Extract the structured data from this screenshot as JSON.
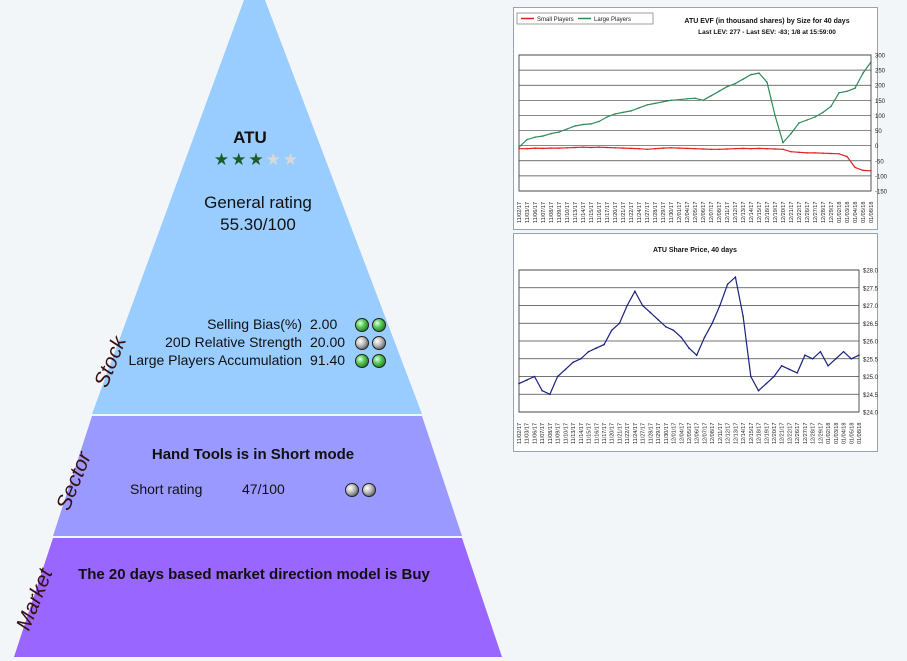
{
  "stock": {
    "ticker": "ATU",
    "stars_filled": 3,
    "stars_total": 5,
    "general_rating_label": "General rating",
    "general_rating_value": "55.30/100",
    "layer_label": "Stock",
    "metrics": [
      {
        "label": "Selling Bias(%)",
        "value": "2.00",
        "balls": [
          "green",
          "green"
        ]
      },
      {
        "label": "20D Relative Strength",
        "value": "20.00",
        "balls": [
          "gray",
          "gray"
        ]
      },
      {
        "label": "Large Players Accumulation",
        "value": "91.40",
        "balls": [
          "green",
          "green"
        ]
      }
    ]
  },
  "sector": {
    "layer_label": "Sector",
    "title": "Hand Tools is in Short mode",
    "short_rating_label": "Short rating",
    "short_rating_value": "47/100",
    "balls": [
      "gray",
      "gray"
    ]
  },
  "market": {
    "layer_label": "Market",
    "title": "The 20 days based market direction model is Buy"
  },
  "colors": {
    "stock_layer": "#99ccff",
    "sector_layer": "#9999ff",
    "market_layer": "#9966ff",
    "small_players": "#e02020",
    "large_players": "#2e8b57",
    "share_price": "#1a237e"
  },
  "chart_data": [
    {
      "type": "line",
      "title": "ATU EVF (in thousand shares) by Size for 40 days",
      "subtitle": "Last LEV: 277 - Last SEV: -83; 1/8 at 15:59:00",
      "legend": [
        "Small Players",
        "Large Players"
      ],
      "legend_position": "top-left",
      "ylim": [
        -150,
        300
      ],
      "yticks": [
        "300",
        "250",
        "200",
        "150",
        "100",
        "50",
        "0",
        "-50",
        "-100",
        "-150"
      ],
      "grid": true,
      "x": [
        "11/02/17",
        "11/03/17",
        "11/06/17",
        "11/07/17",
        "11/08/17",
        "11/09/17",
        "11/10/17",
        "11/13/17",
        "11/14/17",
        "11/15/17",
        "11/16/17",
        "11/17/17",
        "11/20/17",
        "11/21/17",
        "11/22/17",
        "11/24/17",
        "11/27/17",
        "11/28/17",
        "11/29/17",
        "11/30/17",
        "12/01/17",
        "12/04/17",
        "12/05/17",
        "12/06/17",
        "12/07/17",
        "12/08/17",
        "12/11/17",
        "12/12/17",
        "12/13/17",
        "12/14/17",
        "12/15/17",
        "12/18/17",
        "12/19/17",
        "12/20/17",
        "12/21/17",
        "12/22/17",
        "12/26/17",
        "12/27/17",
        "12/28/17",
        "12/29/17",
        "01/02/18",
        "01/03/18",
        "01/04/18",
        "01/05/18",
        "01/08/18"
      ],
      "series": [
        {
          "name": "Small Players",
          "values": [
            -10,
            -10,
            -8,
            -9,
            -8,
            -8,
            -7,
            -6,
            -5,
            -6,
            -5,
            -6,
            -7,
            -8,
            -9,
            -10,
            -12,
            -10,
            -8,
            -7,
            -8,
            -9,
            -10,
            -11,
            -12,
            -12,
            -11,
            -10,
            -9,
            -10,
            -9,
            -10,
            -11,
            -12,
            -20,
            -22,
            -24,
            -24,
            -25,
            -26,
            -27,
            -36,
            -72,
            -82,
            -83
          ]
        },
        {
          "name": "Large Players",
          "values": [
            -5,
            20,
            28,
            32,
            40,
            45,
            55,
            65,
            70,
            72,
            80,
            95,
            105,
            110,
            115,
            125,
            135,
            140,
            145,
            150,
            152,
            155,
            157,
            150,
            165,
            180,
            195,
            205,
            220,
            235,
            240,
            210,
            100,
            10,
            40,
            75,
            85,
            95,
            110,
            130,
            175,
            180,
            190,
            240,
            277
          ]
        }
      ]
    },
    {
      "type": "line",
      "title": "ATU Share Price, 40 days",
      "ylim": [
        24.0,
        28.0
      ],
      "yticks": [
        "$28.0",
        "$27.5",
        "$27.0",
        "$26.5",
        "$26.0",
        "$25.5",
        "$25.0",
        "$24.5",
        "$24.0"
      ],
      "grid": true,
      "x": [
        "11/02/17",
        "11/03/17",
        "11/06/17",
        "11/07/17",
        "11/08/17",
        "11/09/17",
        "11/10/17",
        "11/13/17",
        "11/14/17",
        "11/15/17",
        "11/16/17",
        "11/17/17",
        "11/20/17",
        "11/21/17",
        "11/22/17",
        "11/24/17",
        "11/27/17",
        "11/28/17",
        "11/29/17",
        "11/30/17",
        "12/01/17",
        "12/04/17",
        "12/05/17",
        "12/06/17",
        "12/07/17",
        "12/08/17",
        "12/11/17",
        "12/12/17",
        "12/13/17",
        "12/14/17",
        "12/15/17",
        "12/18/17",
        "12/19/17",
        "12/20/17",
        "12/21/17",
        "12/22/17",
        "12/26/17",
        "12/27/17",
        "12/28/17",
        "12/29/17",
        "01/02/18",
        "01/03/18",
        "01/04/18",
        "01/05/18",
        "01/08/18"
      ],
      "series": [
        {
          "name": "Share Price",
          "values": [
            24.8,
            24.9,
            25.0,
            24.6,
            24.5,
            25.0,
            25.2,
            25.4,
            25.5,
            25.7,
            25.8,
            25.9,
            26.3,
            26.5,
            27.0,
            27.4,
            27.0,
            26.8,
            26.6,
            26.4,
            26.3,
            26.1,
            25.8,
            25.6,
            26.1,
            26.5,
            27.0,
            27.6,
            27.8,
            26.7,
            25.0,
            24.6,
            24.8,
            25.0,
            25.3,
            25.2,
            25.1,
            25.6,
            25.5,
            25.7,
            25.3,
            25.5,
            25.7,
            25.5,
            25.6
          ]
        }
      ]
    }
  ]
}
